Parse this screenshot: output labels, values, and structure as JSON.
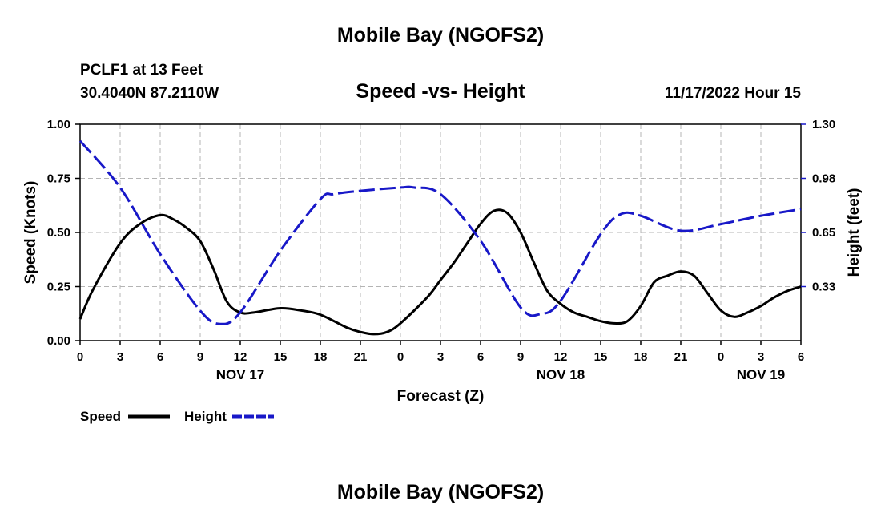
{
  "header": {
    "title": "Mobile Bay (NGOFS2)",
    "station": "PCLF1 at 13 Feet",
    "coordinates": "30.4040N  87.2110W",
    "subtitle": "Speed -vs- Height",
    "datetime": "11/17/2022 Hour 15"
  },
  "footer": {
    "title": "Mobile Bay (NGOFS2)"
  },
  "chart_data": {
    "type": "line",
    "title": "Speed -vs- Height",
    "xlabel": "Forecast (Z)",
    "ylabel": "Speed (Knots)",
    "y2label": "Height (feet)",
    "xlim": [
      0,
      54
    ],
    "ylim": [
      0,
      1.0
    ],
    "y2lim": [
      0,
      1.3
    ],
    "grid": true,
    "x_tick_labels": [
      "0",
      "3",
      "6",
      "9",
      "12",
      "15",
      "18",
      "21",
      "0",
      "3",
      "6",
      "9",
      "12",
      "15",
      "18",
      "21",
      "0",
      "3",
      "6"
    ],
    "y_ticks": [
      "0.00",
      "0.25",
      "0.50",
      "0.75",
      "1.00"
    ],
    "y2_ticks": [
      "0.33",
      "0.65",
      "0.98",
      "1.30"
    ],
    "date_labels": [
      {
        "label": "NOV 17",
        "hour": 12
      },
      {
        "label": "NOV 18",
        "hour": 36
      },
      {
        "label": "NOV 19",
        "hour": 51
      }
    ],
    "legend": "bottom-left",
    "series": [
      {
        "name": "Speed",
        "axis": "left",
        "color": "#000000",
        "style": "solid",
        "x": [
          0,
          1,
          3,
          4.5,
          6,
          7,
          8,
          9,
          10,
          11,
          12,
          13,
          15,
          16.5,
          18,
          20,
          21,
          22,
          23,
          24,
          26,
          27,
          28,
          29,
          30,
          31,
          32,
          33,
          34,
          35,
          36,
          37,
          38,
          39,
          40,
          41,
          42,
          43,
          44,
          45,
          46,
          47,
          48,
          49,
          50,
          51,
          51.5,
          52,
          53,
          54
        ],
        "y": [
          0.1,
          0.24,
          0.45,
          0.54,
          0.58,
          0.56,
          0.52,
          0.46,
          0.33,
          0.18,
          0.13,
          0.13,
          0.15,
          0.14,
          0.12,
          0.06,
          0.04,
          0.03,
          0.04,
          0.08,
          0.2,
          0.28,
          0.36,
          0.45,
          0.54,
          0.6,
          0.59,
          0.5,
          0.36,
          0.23,
          0.17,
          0.13,
          0.11,
          0.09,
          0.08,
          0.09,
          0.16,
          0.27,
          0.3,
          0.32,
          0.3,
          0.22,
          0.14,
          0.11,
          0.13,
          0.16,
          0.18,
          0.2,
          0.23,
          0.25
        ]
      },
      {
        "name": "Height",
        "axis": "right",
        "color": "#1818c8",
        "style": "dashed",
        "x": [
          0,
          3,
          6,
          9,
          10.5,
          12,
          15,
          18,
          19,
          21,
          24,
          25,
          27,
          30,
          33,
          34.5,
          36,
          39,
          40.5,
          42,
          45,
          48,
          51,
          54
        ],
        "y": [
          1.2,
          0.92,
          0.52,
          0.18,
          0.1,
          0.17,
          0.54,
          0.85,
          0.88,
          0.9,
          0.92,
          0.92,
          0.88,
          0.6,
          0.2,
          0.16,
          0.24,
          0.64,
          0.76,
          0.75,
          0.66,
          0.7,
          0.75,
          0.79
        ]
      }
    ]
  }
}
